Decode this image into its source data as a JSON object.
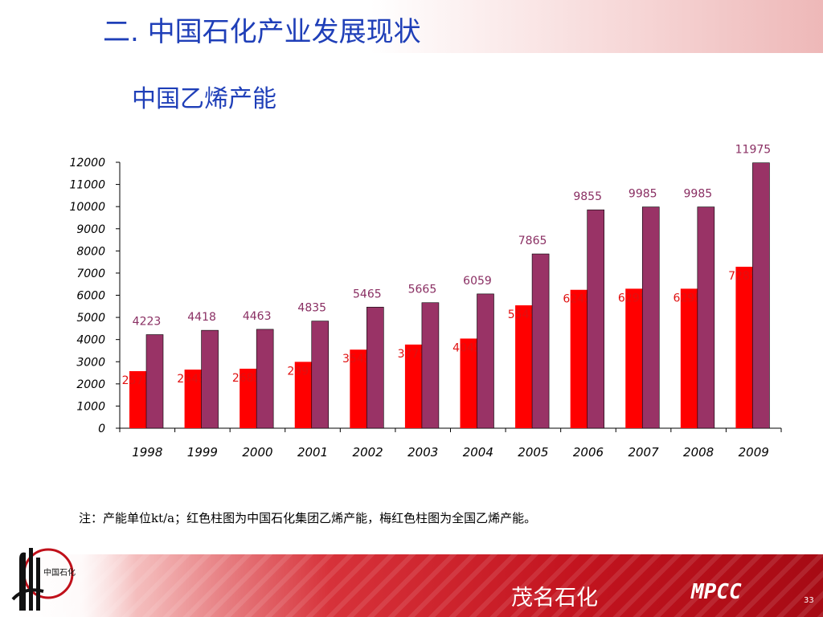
{
  "slide": {
    "title": "二. 中国石化产业发展现状",
    "note": "注：产能单位kt/a；红色柱图为中国石化集团乙烯产能，梅红色柱图为全国乙烯产能。",
    "footer_company_cn": "茂名石化",
    "footer_company_en": "MPCC",
    "page_number": "33",
    "logo_text": "中国石化"
  },
  "chart_data": {
    "type": "bar",
    "title": "中国乙烯产能",
    "categories": [
      "1998",
      "1999",
      "2000",
      "2001",
      "2002",
      "2003",
      "2004",
      "2005",
      "2006",
      "2007",
      "2008",
      "2009"
    ],
    "series": [
      {
        "values": [
          2575,
          2645,
          2685,
          2995,
          3545,
          3775,
          4045,
          5545,
          6245,
          6295,
          6295,
          7285
        ],
        "color": "#ff0000",
        "label_color": "#e01010"
      },
      {
        "values": [
          4223,
          4418,
          4463,
          4835,
          5465,
          5665,
          6059,
          7865,
          9855,
          9985,
          9985,
          11975
        ],
        "color": "#993366",
        "label_color": "#8a2f63"
      }
    ],
    "ylim": [
      0,
      12000
    ],
    "yticks": [
      0,
      1000,
      2000,
      3000,
      4000,
      5000,
      6000,
      7000,
      8000,
      9000,
      10000,
      11000,
      12000
    ],
    "grid": false,
    "legend": "none"
  }
}
